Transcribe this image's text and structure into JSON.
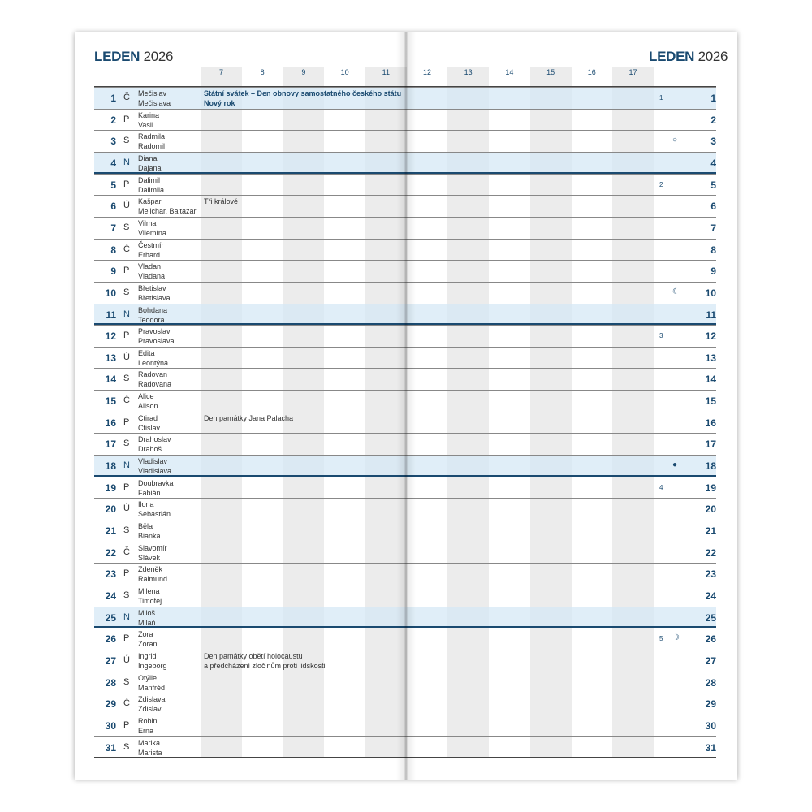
{
  "month_title": "LEDEN",
  "year": "2026",
  "hours": [
    "7",
    "8",
    "9",
    "10",
    "11",
    "12",
    "13",
    "14",
    "15",
    "16",
    "17"
  ],
  "colors": {
    "accent": "#1a4a70",
    "highlight": "#d6e8f5",
    "shade": "#ececec"
  },
  "days": [
    {
      "day": "1",
      "weekday": "Č",
      "names": [
        "Mečislav",
        "Mečislava"
      ],
      "events": [
        "Státní svátek – Den obnovy samostatného českého státu",
        "Nový rok"
      ],
      "holiday": true,
      "week": "1"
    },
    {
      "day": "2",
      "weekday": "P",
      "names": [
        "Karina",
        "Vasil"
      ]
    },
    {
      "day": "3",
      "weekday": "S",
      "names": [
        "Radmila",
        "Radomil"
      ],
      "moon": "○"
    },
    {
      "day": "4",
      "weekday": "N",
      "names": [
        "Diana",
        "Dajana"
      ],
      "sunday": true
    },
    {
      "day": "5",
      "weekday": "P",
      "names": [
        "Dalimil",
        "Dalimila"
      ],
      "week": "2"
    },
    {
      "day": "6",
      "weekday": "Ú",
      "names": [
        "Kašpar",
        "Melichar, Baltazar"
      ],
      "events": [
        "Tři králové"
      ]
    },
    {
      "day": "7",
      "weekday": "S",
      "names": [
        "Vilma",
        "Vilemína"
      ]
    },
    {
      "day": "8",
      "weekday": "Č",
      "names": [
        "Čestmír",
        "Erhard"
      ]
    },
    {
      "day": "9",
      "weekday": "P",
      "names": [
        "Vladan",
        "Vladana"
      ]
    },
    {
      "day": "10",
      "weekday": "S",
      "names": [
        "Břetislav",
        "Břetislava"
      ],
      "moon": "☾"
    },
    {
      "day": "11",
      "weekday": "N",
      "names": [
        "Bohdana",
        "Teodora"
      ],
      "sunday": true
    },
    {
      "day": "12",
      "weekday": "P",
      "names": [
        "Pravoslav",
        "Pravoslava"
      ],
      "week": "3"
    },
    {
      "day": "13",
      "weekday": "Ú",
      "names": [
        "Edita",
        "Leontýna"
      ]
    },
    {
      "day": "14",
      "weekday": "S",
      "names": [
        "Radovan",
        "Radovana"
      ]
    },
    {
      "day": "15",
      "weekday": "Č",
      "names": [
        "Alice",
        "Alison"
      ]
    },
    {
      "day": "16",
      "weekday": "P",
      "names": [
        "Ctirad",
        "Ctislav"
      ],
      "events": [
        "Den památky Jana Palacha"
      ]
    },
    {
      "day": "17",
      "weekday": "S",
      "names": [
        "Drahoslav",
        "Drahoš"
      ]
    },
    {
      "day": "18",
      "weekday": "N",
      "names": [
        "Vladislav",
        "Vladislava"
      ],
      "sunday": true,
      "moon": "●"
    },
    {
      "day": "19",
      "weekday": "P",
      "names": [
        "Doubravka",
        "Fabián"
      ],
      "week": "4"
    },
    {
      "day": "20",
      "weekday": "Ú",
      "names": [
        "Ilona",
        "Sebastián"
      ]
    },
    {
      "day": "21",
      "weekday": "S",
      "names": [
        "Běla",
        "Bianka"
      ]
    },
    {
      "day": "22",
      "weekday": "Č",
      "names": [
        "Slavomír",
        "Slávek"
      ]
    },
    {
      "day": "23",
      "weekday": "P",
      "names": [
        "Zdeněk",
        "Raimund"
      ]
    },
    {
      "day": "24",
      "weekday": "S",
      "names": [
        "Milena",
        "Timotej"
      ]
    },
    {
      "day": "25",
      "weekday": "N",
      "names": [
        "Miloš",
        "Milaň"
      ],
      "sunday": true
    },
    {
      "day": "26",
      "weekday": "P",
      "names": [
        "Zora",
        "Zoran"
      ],
      "week": "5",
      "moon": "☽"
    },
    {
      "day": "27",
      "weekday": "Ú",
      "names": [
        "Ingrid",
        "Ingeborg"
      ],
      "events": [
        "Den památky obětí holocaustu",
        "a předcházení zločinům proti lidskosti"
      ]
    },
    {
      "day": "28",
      "weekday": "S",
      "names": [
        "Otýlie",
        "Manfréd"
      ]
    },
    {
      "day": "29",
      "weekday": "Č",
      "names": [
        "Zdislava",
        "Zdislav"
      ]
    },
    {
      "day": "30",
      "weekday": "P",
      "names": [
        "Robin",
        "Erna"
      ]
    },
    {
      "day": "31",
      "weekday": "S",
      "names": [
        "Marika",
        "Marista"
      ]
    }
  ]
}
